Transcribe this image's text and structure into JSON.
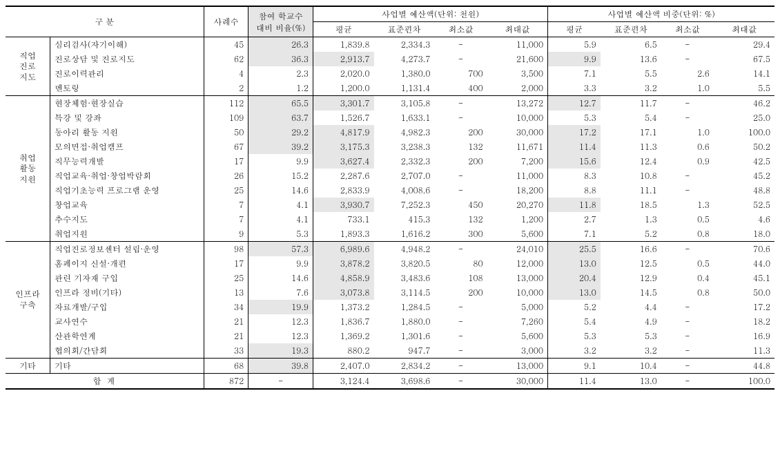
{
  "headers": {
    "category": "구  분",
    "count": "사례수",
    "ratio": "참여 학교수\n대비 비율(%)",
    "budget_group": "사업별 예산액(단위: 천원)",
    "ratio_group": "사업별 예산액 비중(단위: %)",
    "mean": "평균",
    "std": "표준편차",
    "min": "최소값",
    "max": "최대값"
  },
  "categories": [
    {
      "name": "직업\n진로\n지도",
      "rows": [
        {
          "label": "심리검사(자기이해)",
          "count": "45",
          "ratio": "26.3",
          "ratio_hl": true,
          "b_mean": "1,839.8",
          "b_std": "2,334.3",
          "b_min": "-",
          "b_max": "11,000",
          "r_mean": "5.9",
          "r_std": "6.5",
          "r_min": "-",
          "r_max": "29.4"
        },
        {
          "label": "진로상담 및 진로지도",
          "count": "62",
          "ratio": "36.3",
          "ratio_hl": true,
          "b_mean": "2,913.7",
          "b_mean_hl": true,
          "b_std": "4,273.7",
          "b_min": "-",
          "b_max": "21,600",
          "r_mean": "9.9",
          "r_mean_hl": true,
          "r_std": "13.6",
          "r_min": "-",
          "r_max": "67.5"
        },
        {
          "label": "진로이력관리",
          "count": "4",
          "ratio": "2.3",
          "b_mean": "2,020.0",
          "b_std": "1,380.0",
          "b_min": "700",
          "b_max": "3,500",
          "r_mean": "7.1",
          "r_std": "5.5",
          "r_min": "2.6",
          "r_max": "14.1"
        },
        {
          "label": "멘토링",
          "count": "2",
          "ratio": "1.2",
          "b_mean": "1,200.0",
          "b_std": "1,131.4",
          "b_min": "400",
          "b_max": "2,000",
          "r_mean": "3.3",
          "r_std": "3.2",
          "r_min": "1.0",
          "r_max": "5.5"
        }
      ]
    },
    {
      "name": "취업\n활동\n지원",
      "rows": [
        {
          "label": "현장체험·현장실습",
          "count": "112",
          "ratio": "65.5",
          "ratio_hl": true,
          "b_mean": "3,301.7",
          "b_mean_hl": true,
          "b_std": "3,105.8",
          "b_min": "-",
          "b_max": "13,272",
          "r_mean": "12.7",
          "r_mean_hl": true,
          "r_std": "11.7",
          "r_min": "-",
          "r_max": "46.2"
        },
        {
          "label": "특강 및 강좌",
          "count": "109",
          "ratio": "63.7",
          "ratio_hl": true,
          "b_mean": "1,526.7",
          "b_std": "1,633.1",
          "b_min": "-",
          "b_max": "10,000",
          "r_mean": "5.3",
          "r_std": "5.4",
          "r_min": "-",
          "r_max": "25.0"
        },
        {
          "label": "동아리 활동 지원",
          "count": "50",
          "ratio": "29.2",
          "ratio_hl": true,
          "b_mean": "4,817.9",
          "b_mean_hl": true,
          "b_std": "4,982.3",
          "b_min": "200",
          "b_max": "30,000",
          "r_mean": "17.2",
          "r_mean_hl": true,
          "r_std": "17.1",
          "r_min": "1.0",
          "r_max": "100.0"
        },
        {
          "label": "모의면접·취업캠프",
          "count": "67",
          "ratio": "39.2",
          "ratio_hl": true,
          "b_mean": "3,175.3",
          "b_mean_hl": true,
          "b_std": "3,238.3",
          "b_min": "132",
          "b_max": "11,671",
          "r_mean": "11.4",
          "r_mean_hl": true,
          "r_std": "11.3",
          "r_min": "0.6",
          "r_max": "50.2"
        },
        {
          "label": "직무능력개발",
          "count": "17",
          "ratio": "9.9",
          "b_mean": "3,627.4",
          "b_mean_hl": true,
          "b_std": "2,332.3",
          "b_min": "200",
          "b_max": "7,200",
          "r_mean": "15.6",
          "r_mean_hl": true,
          "r_std": "12.4",
          "r_min": "0.9",
          "r_max": "42.5"
        },
        {
          "label": "직업교육·취업·창업박람회",
          "count": "26",
          "ratio": "15.2",
          "b_mean": "2,287.6",
          "b_std": "2,707.0",
          "b_min": "-",
          "b_max": "11,000",
          "r_mean": "8.3",
          "r_std": "10.8",
          "r_min": "-",
          "r_max": "45.2"
        },
        {
          "label": "직업기초능력 프로그램 운영",
          "count": "25",
          "ratio": "14.6",
          "b_mean": "2,833.9",
          "b_std": "4,008.6",
          "b_min": "-",
          "b_max": "18,200",
          "r_mean": "8.8",
          "r_std": "11.1",
          "r_min": "-",
          "r_max": "48.8"
        },
        {
          "label": "창업교육",
          "count": "7",
          "ratio": "4.1",
          "b_mean": "3,930.7",
          "b_mean_hl": true,
          "b_std": "7,252.3",
          "b_min": "450",
          "b_max": "20,270",
          "r_mean": "11.8",
          "r_mean_hl": true,
          "r_std": "18.5",
          "r_min": "1.3",
          "r_max": "52.5"
        },
        {
          "label": "추수지도",
          "count": "7",
          "ratio": "4.1",
          "b_mean": "733.1",
          "b_std": "415.3",
          "b_min": "132",
          "b_max": "1,200",
          "r_mean": "2.7",
          "r_std": "1.3",
          "r_min": "0.5",
          "r_max": "4.6"
        },
        {
          "label": "취업지원",
          "count": "9",
          "ratio": "5.3",
          "b_mean": "1,893.3",
          "b_std": "1,616.2",
          "b_min": "300",
          "b_max": "5,600",
          "r_mean": "7.1",
          "r_std": "5.2",
          "r_min": "0.8",
          "r_max": "18.0"
        }
      ]
    },
    {
      "name": "인프라\n구축",
      "rows": [
        {
          "label": "직업진로정보센터 설립·운영",
          "count": "98",
          "ratio": "57.3",
          "ratio_hl": true,
          "b_mean": "6,989.6",
          "b_mean_hl": true,
          "b_std": "4,948.2",
          "b_min": "-",
          "b_max": "24,010",
          "r_mean": "25.5",
          "r_mean_hl": true,
          "r_std": "16.6",
          "r_min": "-",
          "r_max": "70.6"
        },
        {
          "label": "홈페이지 신설·개편",
          "count": "17",
          "ratio": "9.9",
          "b_mean": "3,878.2",
          "b_mean_hl": true,
          "b_std": "3,820.5",
          "b_min": "80",
          "b_max": "12,000",
          "r_mean": "13.0",
          "r_mean_hl": true,
          "r_std": "12.5",
          "r_min": "0.5",
          "r_max": "44.0"
        },
        {
          "label": "관련 기자재 구입",
          "count": "25",
          "ratio": "14.6",
          "b_mean": "4,858.9",
          "b_mean_hl": true,
          "b_std": "3,483.6",
          "b_min": "108",
          "b_max": "13,000",
          "r_mean": "20.4",
          "r_mean_hl": true,
          "r_std": "12.9",
          "r_min": "0.4",
          "r_max": "45.1"
        },
        {
          "label": "인프라 정비(기타)",
          "count": "13",
          "ratio": "7.6",
          "b_mean": "3,073.8",
          "b_mean_hl": true,
          "b_std": "3,114.5",
          "b_min": "200",
          "b_max": "10,000",
          "r_mean": "13.0",
          "r_mean_hl": true,
          "r_std": "14.5",
          "r_min": "0.8",
          "r_max": "50.0"
        },
        {
          "label": "자료개발/구입",
          "count": "34",
          "ratio": "19.9",
          "ratio_hl": true,
          "b_mean": "1,373.2",
          "b_std": "1,284.5",
          "b_min": "-",
          "b_max": "5,000",
          "r_mean": "5.2",
          "r_std": "4.4",
          "r_min": "-",
          "r_max": "17.2"
        },
        {
          "label": "교사연수",
          "count": "21",
          "ratio": "12.3",
          "b_mean": "1,836.7",
          "b_std": "1,880.0",
          "b_min": "-",
          "b_max": "7,260",
          "r_mean": "5.4",
          "r_std": "4.9",
          "r_min": "-",
          "r_max": "18.2"
        },
        {
          "label": "산관학연계",
          "count": "21",
          "ratio": "12.3",
          "b_mean": "1,369.2",
          "b_std": "1,301.6",
          "b_min": "-",
          "b_max": "5,600",
          "r_mean": "5.3",
          "r_std": "5.3",
          "r_min": "-",
          "r_max": "16.9"
        },
        {
          "label": "협의회/간담회",
          "count": "33",
          "ratio": "19.3",
          "ratio_hl": true,
          "b_mean": "880.2",
          "b_std": "947.7",
          "b_min": "-",
          "b_max": "3,000",
          "r_mean": "3.2",
          "r_std": "3.2",
          "r_min": "-",
          "r_max": "11.3"
        }
      ]
    },
    {
      "name": "기타",
      "rows": [
        {
          "label": "기타",
          "count": "68",
          "ratio": "39.8",
          "ratio_hl": true,
          "b_mean": "2,407.0",
          "b_std": "2,834.2",
          "b_min": "-",
          "b_max": "13,000",
          "r_mean": "9.1",
          "r_std": "10.4",
          "r_min": "-",
          "r_max": "44.8"
        }
      ]
    }
  ],
  "total": {
    "label": "합  계",
    "count": "872",
    "ratio": "-",
    "b_mean": "3,124.4",
    "b_std": "3,698.6",
    "b_min": "-",
    "b_max": "30,000",
    "r_mean": "11.4",
    "r_std": "13.0",
    "r_min": "-",
    "r_max": "100.0"
  },
  "style": {
    "highlight_bg": "#e6e6e6",
    "col_widths_pct": [
      5.5,
      19,
      5.5,
      8,
      7.5,
      7.5,
      6.5,
      7.5,
      6.5,
      7.5,
      6.5,
      7.5
    ]
  }
}
